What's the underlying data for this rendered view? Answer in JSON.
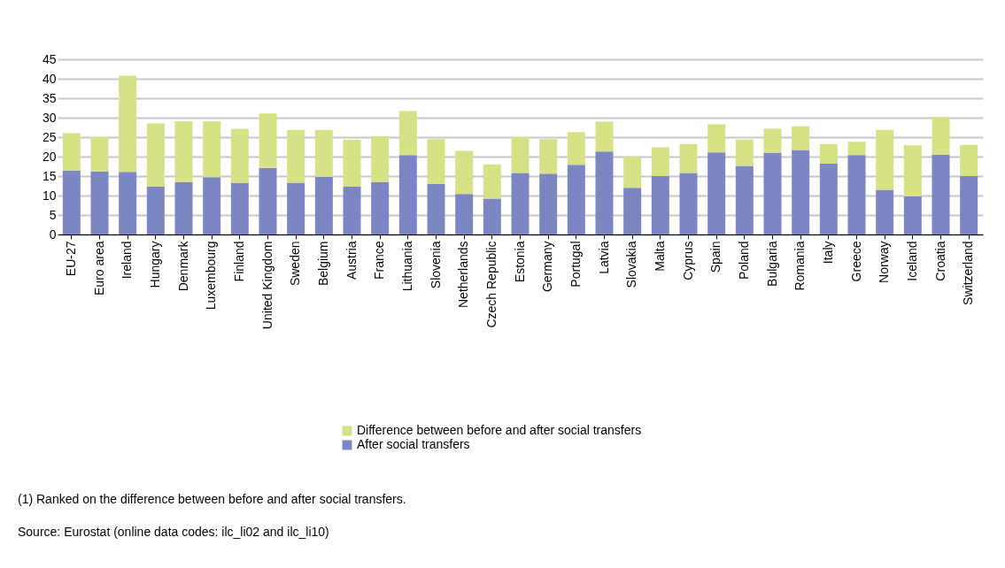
{
  "chart_data": {
    "type": "bar",
    "stacked": true,
    "categories": [
      "EU-27",
      "Euro area",
      "Ireland",
      "Hungary",
      "Denmark",
      "Luxembourg",
      "Finland",
      "United Kingdom",
      "Sweden",
      "Belgium",
      "Austria",
      "France",
      "Lithuania",
      "Slovenia",
      "Netherlands",
      "Czech Republic",
      "Estonia",
      "Germany",
      "Portugal",
      "Latvia",
      "Slovakia",
      "Malta",
      "Cyprus",
      "Spain",
      "Poland",
      "Bulgaria",
      "Romania",
      "Italy",
      "Greece",
      "Norway",
      "Iceland",
      "Croatia",
      "Switzerland"
    ],
    "series": [
      {
        "name": "After social transfers",
        "color": "#7b86c2",
        "values": [
          16.4,
          16.2,
          16.1,
          12.3,
          13.4,
          14.7,
          13.2,
          17.1,
          13.3,
          14.8,
          12.3,
          13.4,
          20.4,
          13.0,
          10.4,
          9.2,
          15.8,
          15.6,
          17.9,
          21.3,
          12.0,
          15.0,
          15.8,
          21.1,
          17.6,
          21.0,
          21.7,
          18.2,
          20.4,
          11.5,
          9.8,
          20.5,
          15.0
        ]
      },
      {
        "name": "Difference between before and after social transfers",
        "color": "#d7e287",
        "values": [
          9.6,
          8.8,
          24.7,
          16.2,
          15.7,
          14.4,
          13.9,
          14.0,
          13.5,
          12.0,
          12.0,
          11.8,
          11.3,
          11.5,
          11.1,
          8.8,
          9.2,
          8.9,
          8.4,
          7.7,
          8.0,
          7.4,
          7.4,
          7.2,
          6.8,
          6.2,
          6.1,
          5.0,
          3.4,
          15.3,
          13.1,
          9.6,
          8.0
        ]
      }
    ],
    "ylim": [
      0,
      45
    ],
    "yticks": [
      0,
      5,
      10,
      15,
      20,
      25,
      30,
      35,
      40,
      45
    ],
    "grid": "y",
    "legend": "bottom",
    "annotations": [
      "(1) Ranked on the difference between before and after social transfers.",
      "Source: Eurostat (online data codes: ilc_li02 and ilc_li10)"
    ]
  }
}
